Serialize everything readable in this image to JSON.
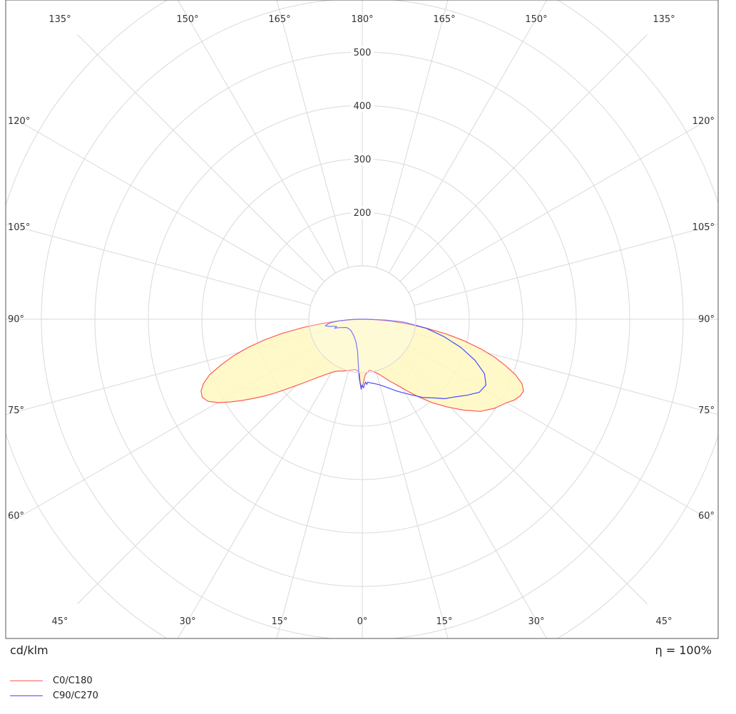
{
  "chart_data": {
    "type": "polar",
    "unit_label": "cd/klm",
    "efficiency_label": "η = 100%",
    "radial_ticks": [
      "200",
      "300",
      "400",
      "500"
    ],
    "radial_tick_values": [
      200,
      300,
      400,
      500
    ],
    "radial_grid_values": [
      100,
      200,
      300,
      400,
      500,
      600,
      700
    ],
    "angle_ticks": [
      "135°",
      "150°",
      "165°",
      "180°",
      "165°",
      "150°",
      "135°",
      "120°",
      "120°",
      "105°",
      "105°",
      "90°",
      "90°",
      "75°",
      "75°",
      "60°",
      "60°",
      "45°",
      "30°",
      "15°",
      "0°",
      "15°",
      "30°",
      "45°"
    ],
    "series": [
      {
        "name": "C0/C180",
        "color": "#ff5a5a",
        "fill": "#fff8c0",
        "points_deg_cd": [
          [
            -90,
            8
          ],
          [
            -88,
            22
          ],
          [
            -86,
            45
          ],
          [
            -84,
            75
          ],
          [
            -82,
            112
          ],
          [
            -80,
            152
          ],
          [
            -78,
            188
          ],
          [
            -76,
            222
          ],
          [
            -74,
            252
          ],
          [
            -72,
            278
          ],
          [
            -70,
            304
          ],
          [
            -68,
            320
          ],
          [
            -66,
            330
          ],
          [
            -64,
            333
          ],
          [
            -62,
            327
          ],
          [
            -60,
            312
          ],
          [
            -58,
            292
          ],
          [
            -56,
            272
          ],
          [
            -54,
            252
          ],
          [
            -52,
            234
          ],
          [
            -50,
            216
          ],
          [
            -48,
            198
          ],
          [
            -44,
            170
          ],
          [
            -40,
            148
          ],
          [
            -36,
            132
          ],
          [
            -32,
            120
          ],
          [
            -28,
            111
          ],
          [
            -24,
            106
          ],
          [
            -20,
            103
          ],
          [
            -16,
            100
          ],
          [
            -12,
            97
          ],
          [
            -8,
            95
          ],
          [
            -5,
            97
          ],
          [
            -3,
            102
          ],
          [
            -2,
            118
          ],
          [
            -1,
            125
          ],
          [
            0,
            124
          ],
          [
            1,
            120
          ],
          [
            2,
            110
          ],
          [
            3,
            104
          ],
          [
            5,
            101
          ],
          [
            8,
            96
          ],
          [
            12,
            100
          ],
          [
            16,
            106
          ],
          [
            20,
            115
          ],
          [
            24,
            127
          ],
          [
            28,
            140
          ],
          [
            32,
            158
          ],
          [
            36,
            180
          ],
          [
            40,
            204
          ],
          [
            44,
            228
          ],
          [
            48,
            254
          ],
          [
            52,
            280
          ],
          [
            56,
            298
          ],
          [
            60,
            312
          ],
          [
            62,
            322
          ],
          [
            64,
            328
          ],
          [
            66,
            330
          ],
          [
            68,
            322
          ],
          [
            70,
            305
          ],
          [
            72,
            282
          ],
          [
            74,
            257
          ],
          [
            76,
            228
          ],
          [
            78,
            195
          ],
          [
            80,
            160
          ],
          [
            82,
            122
          ],
          [
            84,
            86
          ],
          [
            86,
            54
          ],
          [
            88,
            26
          ],
          [
            90,
            8
          ]
        ]
      },
      {
        "name": "C90/C270",
        "color": "#4a4aff",
        "points_deg_cd": [
          [
            -90,
            8
          ],
          [
            -88,
            24
          ],
          [
            -86,
            43
          ],
          [
            -84,
            58
          ],
          [
            -82,
            66
          ],
          [
            -80,
            70
          ],
          [
            -78,
            64
          ],
          [
            -76,
            54
          ],
          [
            -74,
            50
          ],
          [
            -72,
            54
          ],
          [
            -70,
            46
          ],
          [
            -66,
            38
          ],
          [
            -62,
            33
          ],
          [
            -55,
            31
          ],
          [
            -45,
            30
          ],
          [
            -35,
            32
          ],
          [
            -25,
            36
          ],
          [
            -15,
            45
          ],
          [
            -8,
            62
          ],
          [
            -5,
            85
          ],
          [
            -3,
            110
          ],
          [
            -1,
            130
          ],
          [
            0,
            124
          ],
          [
            1,
            128
          ],
          [
            2,
            122
          ],
          [
            3,
            118
          ],
          [
            4,
            122
          ],
          [
            5,
            118
          ],
          [
            7,
            120
          ],
          [
            10,
            122
          ],
          [
            14,
            126
          ],
          [
            18,
            132
          ],
          [
            22,
            140
          ],
          [
            26,
            150
          ],
          [
            30,
            160
          ],
          [
            34,
            172
          ],
          [
            38,
            186
          ],
          [
            42,
            198
          ],
          [
            46,
            214
          ],
          [
            50,
            226
          ],
          [
            54,
            242
          ],
          [
            58,
            258
          ],
          [
            62,
            262
          ],
          [
            66,
            250
          ],
          [
            70,
            224
          ],
          [
            74,
            192
          ],
          [
            78,
            156
          ],
          [
            82,
            120
          ],
          [
            86,
            78
          ],
          [
            88,
            45
          ],
          [
            90,
            8
          ]
        ]
      }
    ]
  }
}
